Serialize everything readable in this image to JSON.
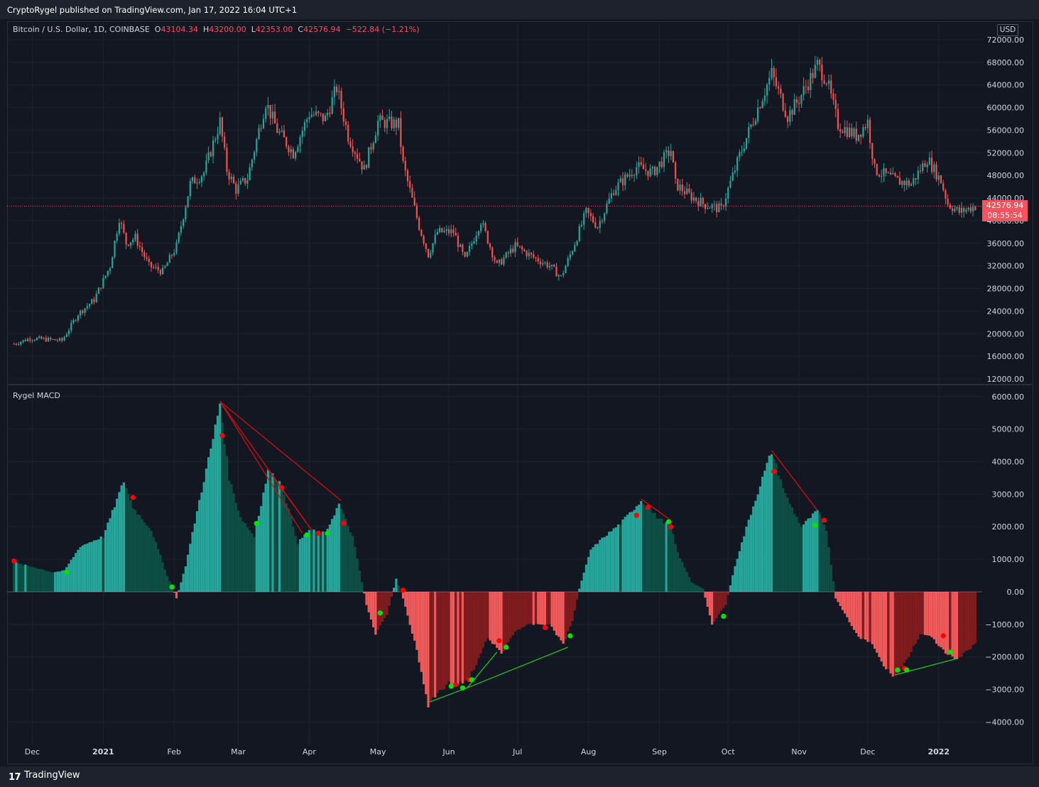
{
  "header": {
    "publisher_line": "CryptoRygel published on TradingView.com, Jan 17, 2022 16:04 UTC+1"
  },
  "legend": {
    "symbol": "Bitcoin / U.S. Dollar, 1D, COINBASE",
    "open_label": "O",
    "open": "43104.34",
    "high_label": "H",
    "high": "43200.00",
    "low_label": "L",
    "low": "42353.00",
    "close_label": "C",
    "close": "42576.94",
    "change": "−522.84 (−1.21%)"
  },
  "currency": "USD",
  "last_price": {
    "value": "42576.94",
    "countdown": "08:55:54"
  },
  "indicator": {
    "name": "Rygel MACD"
  },
  "footer": {
    "brand": "TradingView",
    "logo": "17"
  },
  "colors": {
    "background": "#131722",
    "up": "#26a69a",
    "down": "#ef5350",
    "hist_pos_strong": "#26a69a",
    "hist_pos_weak": "#0d4f45",
    "hist_neg_strong": "#f05a5a",
    "hist_neg_weak": "#801b1e",
    "signal_bull": "#00e400",
    "signal_bear": "#ff0000",
    "grid": "#1e222d",
    "axis_text": "#d1d4dc"
  },
  "chart_data": [
    {
      "type": "candlestick",
      "title": "Bitcoin / U.S. Dollar, 1D, COINBASE",
      "y_axis_ticks": [
        "72000.00",
        "68000.00",
        "64000.00",
        "60000.00",
        "56000.00",
        "52000.00",
        "48000.00",
        "44000.00",
        "40000.00",
        "36000.00",
        "32000.00",
        "28000.00",
        "24000.00",
        "20000.00",
        "16000.00",
        "12000.00"
      ],
      "x_axis_labels": [
        "Dec",
        "2021",
        "Feb",
        "Mar",
        "Apr",
        "May",
        "Jun",
        "Jul",
        "Aug",
        "Sep",
        "Oct",
        "Nov",
        "Dec",
        "2022"
      ],
      "ylim": [
        11000,
        73500
      ],
      "close_path": [
        [
          "2020-11-23",
          18200
        ],
        [
          "2020-11-30",
          19200
        ],
        [
          "2020-12-07",
          19000
        ],
        [
          "2020-12-14",
          18800
        ],
        [
          "2020-12-21",
          23500
        ],
        [
          "2020-12-28",
          26000
        ],
        [
          "2021-01-04",
          32000
        ],
        [
          "2021-01-08",
          40500
        ],
        [
          "2021-01-11",
          36000
        ],
        [
          "2021-01-15",
          37000
        ],
        [
          "2021-01-21",
          32000
        ],
        [
          "2021-01-27",
          31000
        ],
        [
          "2021-02-02",
          35500
        ],
        [
          "2021-02-08",
          46500
        ],
        [
          "2021-02-14",
          48500
        ],
        [
          "2021-02-21",
          57500
        ],
        [
          "2021-02-24",
          49000
        ],
        [
          "2021-02-28",
          45500
        ],
        [
          "2021-03-05",
          47500
        ],
        [
          "2021-03-13",
          61000
        ],
        [
          "2021-03-18",
          56000
        ],
        [
          "2021-03-25",
          52000
        ],
        [
          "2021-04-01",
          59000
        ],
        [
          "2021-04-08",
          58000
        ],
        [
          "2021-04-13",
          63500
        ],
        [
          "2021-04-18",
          55000
        ],
        [
          "2021-04-25",
          49000
        ],
        [
          "2021-05-01",
          57500
        ],
        [
          "2021-05-10",
          57000
        ],
        [
          "2021-05-12",
          50000
        ],
        [
          "2021-05-19",
          39000
        ],
        [
          "2021-05-23",
          34000
        ],
        [
          "2021-05-27",
          38000
        ],
        [
          "2021-06-03",
          38000
        ],
        [
          "2021-06-08",
          33000
        ],
        [
          "2021-06-15",
          40000
        ],
        [
          "2021-06-22",
          32000
        ],
        [
          "2021-06-30",
          35500
        ],
        [
          "2021-07-08",
          33500
        ],
        [
          "2021-07-15",
          32000
        ],
        [
          "2021-07-20",
          30000
        ],
        [
          "2021-07-25",
          35000
        ],
        [
          "2021-07-31",
          41500
        ],
        [
          "2021-08-05",
          39000
        ],
        [
          "2021-08-12",
          45500
        ],
        [
          "2021-08-22",
          49500
        ],
        [
          "2021-08-29",
          48500
        ],
        [
          "2021-09-06",
          52500
        ],
        [
          "2021-09-08",
          46500
        ],
        [
          "2021-09-14",
          44500
        ],
        [
          "2021-09-20",
          43000
        ],
        [
          "2021-09-28",
          42000
        ],
        [
          "2021-10-06",
          51500
        ],
        [
          "2021-10-15",
          61000
        ],
        [
          "2021-10-20",
          66000
        ],
        [
          "2021-10-27",
          58500
        ],
        [
          "2021-11-01",
          61500
        ],
        [
          "2021-11-09",
          67500
        ],
        [
          "2021-11-13",
          65000
        ],
        [
          "2021-11-18",
          57000
        ],
        [
          "2021-11-26",
          55000
        ],
        [
          "2021-12-01",
          57500
        ],
        [
          "2021-12-04",
          49000
        ],
        [
          "2021-12-14",
          47000
        ],
        [
          "2021-12-20",
          46500
        ],
        [
          "2021-12-27",
          51000
        ],
        [
          "2022-01-02",
          47000
        ],
        [
          "2022-01-05",
          43000
        ],
        [
          "2022-01-10",
          41500
        ],
        [
          "2022-01-17",
          42576.94
        ]
      ],
      "last": {
        "open": 43104.34,
        "high": 43200.0,
        "low": 42353.0,
        "close": 42576.94
      }
    },
    {
      "type": "bar",
      "title": "Rygel MACD",
      "y_axis_ticks": [
        "6000.00",
        "5000.00",
        "4000.00",
        "3000.00",
        "2000.00",
        "1000.00",
        "0.00",
        "−1000.00",
        "−2000.00",
        "−3000.00",
        "−4000.00"
      ],
      "ylim": [
        -4600,
        6300
      ],
      "histogram_path": [
        [
          "2020-11-23",
          900
        ],
        [
          "2020-12-02",
          750
        ],
        [
          "2020-12-10",
          600
        ],
        [
          "2020-12-15",
          650
        ],
        [
          "2020-12-22",
          1400
        ],
        [
          "2021-01-01",
          1700
        ],
        [
          "2021-01-10",
          3400
        ],
        [
          "2021-01-14",
          2600
        ],
        [
          "2021-01-22",
          1900
        ],
        [
          "2021-01-29",
          500
        ],
        [
          "2021-02-02",
          -200
        ],
        [
          "2021-02-06",
          800
        ],
        [
          "2021-02-12",
          2800
        ],
        [
          "2021-02-18",
          4700
        ],
        [
          "2021-02-21",
          5800
        ],
        [
          "2021-02-25",
          3500
        ],
        [
          "2021-03-02",
          2300
        ],
        [
          "2021-03-08",
          1700
        ],
        [
          "2021-03-14",
          3700
        ],
        [
          "2021-03-20",
          3300
        ],
        [
          "2021-03-27",
          1500
        ],
        [
          "2021-04-01",
          1900
        ],
        [
          "2021-04-08",
          1800
        ],
        [
          "2021-04-14",
          2700
        ],
        [
          "2021-04-20",
          1700
        ],
        [
          "2021-04-26",
          -400
        ],
        [
          "2021-04-30",
          -1300
        ],
        [
          "2021-05-05",
          -700
        ],
        [
          "2021-05-09",
          400
        ],
        [
          "2021-05-12",
          -200
        ],
        [
          "2021-05-18",
          -1800
        ],
        [
          "2021-05-23",
          -3500
        ],
        [
          "2021-05-27",
          -3100
        ],
        [
          "2021-06-01",
          -2800
        ],
        [
          "2021-06-08",
          -2800
        ],
        [
          "2021-06-12",
          -2400
        ],
        [
          "2021-06-18",
          -1400
        ],
        [
          "2021-06-24",
          -1900
        ],
        [
          "2021-06-30",
          -1200
        ],
        [
          "2021-07-06",
          -1000
        ],
        [
          "2021-07-15",
          -1000
        ],
        [
          "2021-07-21",
          -1600
        ],
        [
          "2021-07-25",
          -900
        ],
        [
          "2021-07-28",
          100
        ],
        [
          "2021-08-02",
          1300
        ],
        [
          "2021-08-08",
          1700
        ],
        [
          "2021-08-15",
          2100
        ],
        [
          "2021-08-24",
          2800
        ],
        [
          "2021-08-31",
          2300
        ],
        [
          "2021-09-06",
          2000
        ],
        [
          "2021-09-09",
          1200
        ],
        [
          "2021-09-15",
          300
        ],
        [
          "2021-09-20",
          100
        ],
        [
          "2021-09-24",
          -1000
        ],
        [
          "2021-09-30",
          -400
        ],
        [
          "2021-10-04",
          800
        ],
        [
          "2021-10-10",
          2200
        ],
        [
          "2021-10-17",
          3700
        ],
        [
          "2021-10-20",
          4300
        ],
        [
          "2021-10-26",
          3000
        ],
        [
          "2021-11-02",
          2000
        ],
        [
          "2021-11-09",
          2500
        ],
        [
          "2021-11-13",
          1900
        ],
        [
          "2021-11-17",
          -200
        ],
        [
          "2021-11-22",
          -800
        ],
        [
          "2021-11-27",
          -1400
        ],
        [
          "2021-12-03",
          -1600
        ],
        [
          "2021-12-08",
          -2300
        ],
        [
          "2021-12-13",
          -2600
        ],
        [
          "2021-12-18",
          -2100
        ],
        [
          "2021-12-24",
          -1300
        ],
        [
          "2021-12-29",
          -1400
        ],
        [
          "2022-01-04",
          -1900
        ],
        [
          "2022-01-09",
          -2100
        ],
        [
          "2022-01-17",
          -1600
        ]
      ],
      "bearish_divergence_lines": [
        [
          [
            "2021-02-21",
            5850
          ],
          [
            "2021-04-15",
            2800
          ]
        ],
        [
          [
            "2021-02-21",
            5850
          ],
          [
            "2021-04-02",
            1900
          ]
        ],
        [
          [
            "2021-02-21",
            5850
          ],
          [
            "2021-03-29",
            1800
          ]
        ],
        [
          [
            "2021-03-14",
            3750
          ],
          [
            "2021-04-02",
            1900
          ]
        ],
        [
          [
            "2021-08-24",
            2850
          ],
          [
            "2021-09-06",
            2200
          ]
        ],
        [
          [
            "2021-10-20",
            4350
          ],
          [
            "2021-11-09",
            2500
          ]
        ]
      ],
      "bullish_divergence_lines": [
        [
          [
            "2021-05-23",
            -3400
          ],
          [
            "2021-06-09",
            -2950
          ]
        ],
        [
          [
            "2021-06-09",
            -2950
          ],
          [
            "2021-06-22",
            -1850
          ]
        ],
        [
          [
            "2021-06-09",
            -2950
          ],
          [
            "2021-07-23",
            -1700
          ]
        ],
        [
          [
            "2021-12-13",
            -2550
          ],
          [
            "2022-01-09",
            -2050
          ]
        ]
      ],
      "bearish_signals": [
        [
          "2020-11-23",
          950
        ],
        [
          "2021-01-14",
          2900
        ],
        [
          "2021-02-22",
          4800
        ],
        [
          "2021-03-20",
          3200
        ],
        [
          "2021-04-05",
          1800
        ],
        [
          "2021-04-16",
          2100
        ],
        [
          "2021-05-12",
          50
        ],
        [
          "2021-06-04",
          -2850
        ],
        [
          "2021-06-10",
          -2700
        ],
        [
          "2021-06-23",
          -1500
        ],
        [
          "2021-07-13",
          -1100
        ],
        [
          "2021-08-22",
          2350
        ],
        [
          "2021-08-27",
          2600
        ],
        [
          "2021-09-06",
          2000
        ],
        [
          "2021-10-21",
          3700
        ],
        [
          "2021-11-12",
          2200
        ],
        [
          "2021-12-17",
          -2350
        ],
        [
          "2022-01-03",
          -1350
        ]
      ],
      "bullish_signals": [
        [
          "2020-12-16",
          600
        ],
        [
          "2021-01-31",
          150
        ],
        [
          "2021-03-09",
          2100
        ],
        [
          "2021-03-31",
          1750
        ],
        [
          "2021-04-09",
          1800
        ],
        [
          "2021-05-02",
          -650
        ],
        [
          "2021-06-02",
          -2900
        ],
        [
          "2021-06-07",
          -2950
        ],
        [
          "2021-06-11",
          -2700
        ],
        [
          "2021-06-26",
          -1700
        ],
        [
          "2021-07-24",
          -1350
        ],
        [
          "2021-09-05",
          2150
        ],
        [
          "2021-09-29",
          -750
        ],
        [
          "2021-11-08",
          2050
        ],
        [
          "2021-12-14",
          -2400
        ],
        [
          "2021-12-18",
          -2400
        ],
        [
          "2022-01-06",
          -1850
        ]
      ]
    }
  ]
}
